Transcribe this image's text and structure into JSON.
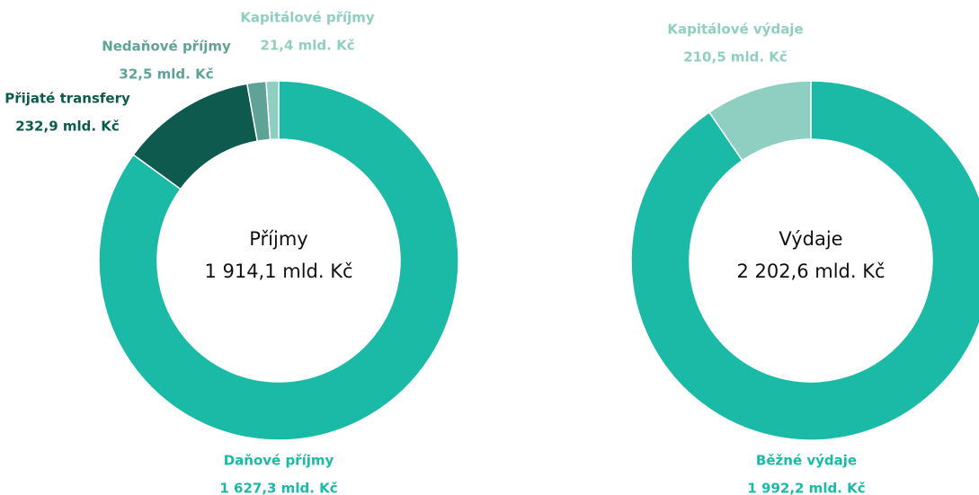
{
  "chart_data": [
    {
      "type": "donut",
      "center_title": "Příjmy",
      "center_value_label": "1 914,1 mld. Kč",
      "categories": [
        "Daňové příjmy",
        "Přijaté transfery",
        "Nedaňové příjmy",
        "Kapitálové příjmy"
      ],
      "values": [
        1627.3,
        232.9,
        32.5,
        21.4
      ],
      "value_labels": [
        "1 627,3 mld. Kč",
        "232,9 mld. Kč",
        "32,5 mld. Kč",
        "21,4 mld. Kč"
      ],
      "colors": [
        "#1bbaa6",
        "#0e5a4e",
        "#5fa396",
        "#8fcfc2"
      ]
    },
    {
      "type": "donut",
      "center_title": "Výdaje",
      "center_value_label": "2 202,6 mld. Kč",
      "categories": [
        "Běžné výdaje",
        "Kapitálové výdaje"
      ],
      "values": [
        1992.2,
        210.5
      ],
      "value_labels": [
        "1 992,2 mld. Kč",
        "210,5 mld. Kč"
      ],
      "colors": [
        "#1bbaa6",
        "#8fcfc2"
      ]
    }
  ]
}
